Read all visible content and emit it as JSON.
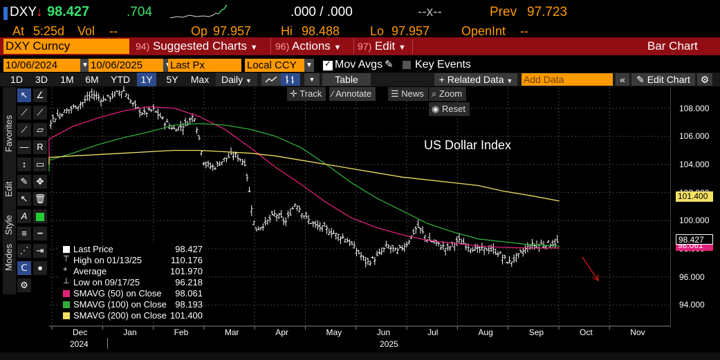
{
  "quote": {
    "ticker": "DXY",
    "direction_arrow": "↓",
    "last_price": "98.427",
    "change": ".704",
    "bid_ask": ".000 / .000",
    "size_placeholder": "--x--",
    "prev_label": "Prev",
    "prev_value": "97.723",
    "at_label": "At",
    "time": "5:25d",
    "vol_label": "Vol",
    "vol_value": "--",
    "open_label": "Op",
    "open_value": "97.957",
    "high_label": "Hi",
    "high_value": "98.488",
    "low_label": "Lo",
    "low_value": "97.957",
    "openint_label": "OpenInt",
    "openint_value": "--"
  },
  "toolbar": {
    "security": "DXY Curncy",
    "suggested_num": "94)",
    "suggested_label": "Suggested Charts",
    "actions_num": "96)",
    "actions_label": "Actions",
    "edit_num": "97)",
    "edit_label": "Edit",
    "view_title": "Bar Chart"
  },
  "settings": {
    "start_date": "10/06/2024",
    "dash": "-",
    "end_date": "10/06/2025",
    "field": "Last Px",
    "currency": "Local CCY",
    "mov_avgs": "Mov Avgs",
    "key_events": "Key Events"
  },
  "periods": {
    "items": [
      "1D",
      "3D",
      "1M",
      "6M",
      "YTD",
      "1Y",
      "5Y",
      "Max"
    ],
    "selected": "1Y",
    "frequency": "Daily",
    "table_label": "Table",
    "related_data": "Related Data",
    "add_data_placeholder": "Add Data",
    "edit_chart": "Edit Chart"
  },
  "overlay": {
    "track": "Track",
    "annotate": "Annotate",
    "news": "News",
    "zoom": "Zoom",
    "reset": "Reset"
  },
  "side_labels": {
    "favorites": "Favorites",
    "edit": "Edit",
    "style": "Style",
    "modes": "Modes"
  },
  "legend": {
    "last_price_label": "Last Price",
    "last_price_value": "98.427",
    "high_label": "High on 01/13/25",
    "high_value": "110.176",
    "average_label": "Average",
    "average_value": "101.970",
    "low_label": "Low on 09/17/25",
    "low_value": "96.218",
    "sma50_label": "SMAVG (50)  on Close",
    "sma50_value": "98.061",
    "sma100_label": "SMAVG (100)  on Close",
    "sma100_value": "98.193",
    "sma200_label": "SMAVG (200)  on Close",
    "sma200_value": "101.400"
  },
  "colors": {
    "accent_orange": "#ff9a00",
    "bar_red": "#900d14",
    "price_bars": "#ffffff",
    "sma50": "#e0217a",
    "sma100": "#2fae3a",
    "sma200": "#f3e063",
    "annotation_arrow": "#e0201a"
  },
  "chart_data": {
    "type": "line",
    "title": "US Dollar Index",
    "xlabel": "",
    "ylabel": "",
    "ylim": [
      92.5,
      109.5
    ],
    "y_ticks": [
      "108.000",
      "106.000",
      "104.000",
      "102.000",
      "100.000",
      "98.000",
      "96.000",
      "94.000"
    ],
    "x_ticks": [
      "Dec",
      "Jan",
      "Feb",
      "Mar",
      "Apr",
      "May",
      "Jun",
      "Jul",
      "Aug",
      "Sep",
      "Oct",
      "Nov"
    ],
    "x_sub_labels": [
      "2024",
      "2025"
    ],
    "axis_badges": {
      "sma200": "101.400",
      "last": "98.427",
      "sma50": "98.061"
    },
    "x_months": [
      0,
      1,
      2,
      3,
      4,
      5,
      6,
      7,
      8,
      9,
      10,
      11
    ],
    "series": [
      {
        "name": "Last Price",
        "x": [
          -1.6,
          -1.4,
          -1.2,
          -1.0,
          -0.8,
          -0.6,
          -0.4,
          -0.2,
          0.0,
          0.2,
          0.4,
          0.6,
          0.8,
          1.0,
          1.2,
          1.4,
          1.6,
          1.8,
          2.0,
          2.2,
          2.4,
          2.6,
          2.8,
          3.0,
          3.2,
          3.4,
          3.6,
          3.8,
          4.0,
          4.2,
          4.4,
          4.6,
          4.8,
          5.0,
          5.2,
          5.4,
          5.6,
          5.8,
          6.0,
          6.2,
          6.4,
          6.6,
          6.8,
          7.0,
          7.2,
          7.4,
          7.6,
          7.8,
          8.0,
          8.2,
          8.4,
          8.6,
          8.8,
          9.0,
          9.2,
          9.4,
          9.6
        ],
        "values": [
          105.0,
          104.2,
          103.8,
          104.5,
          105.3,
          106.5,
          107.2,
          107.7,
          108.0,
          108.4,
          109.0,
          108.6,
          108.9,
          109.3,
          108.2,
          107.6,
          107.9,
          107.1,
          106.5,
          106.8,
          107.5,
          104.0,
          103.8,
          104.4,
          104.7,
          104.1,
          99.3,
          99.8,
          100.5,
          99.9,
          101.3,
          100.2,
          99.6,
          99.4,
          99.0,
          98.7,
          97.9,
          97.0,
          97.4,
          98.2,
          97.8,
          98.4,
          99.6,
          98.7,
          98.3,
          98.0,
          98.6,
          98.2,
          97.9,
          98.0,
          97.7,
          97.0,
          97.5,
          98.2,
          98.3,
          98.4,
          98.43
        ]
      },
      {
        "name": "SMAVG (50)  on Close",
        "x": [
          -1.6,
          -1.0,
          -0.5,
          0.0,
          0.5,
          1.0,
          1.5,
          2.0,
          2.5,
          3.0,
          3.5,
          4.0,
          4.5,
          5.0,
          5.5,
          6.0,
          6.5,
          7.0,
          7.5,
          8.0,
          8.5,
          9.0,
          9.6
        ],
        "values": [
          103.8,
          104.8,
          105.8,
          106.7,
          107.3,
          107.8,
          108.1,
          108.0,
          107.4,
          106.5,
          105.2,
          103.8,
          102.6,
          101.3,
          100.2,
          99.5,
          99.0,
          98.6,
          98.4,
          98.2,
          98.1,
          98.05,
          98.06
        ]
      },
      {
        "name": "SMAVG (100)  on Close",
        "x": [
          -1.6,
          -1.0,
          -0.5,
          0.0,
          0.5,
          1.0,
          1.5,
          2.0,
          2.5,
          3.0,
          3.5,
          4.0,
          4.5,
          5.0,
          5.5,
          6.0,
          6.5,
          7.0,
          7.5,
          8.0,
          8.5,
          9.0,
          9.6
        ],
        "values": [
          103.5,
          103.8,
          104.3,
          104.8,
          105.4,
          105.9,
          106.3,
          106.8,
          106.9,
          106.8,
          106.5,
          106.0,
          105.2,
          104.0,
          102.7,
          101.6,
          100.7,
          99.8,
          99.2,
          98.7,
          98.5,
          98.3,
          98.19
        ]
      },
      {
        "name": "SMAVG (200)  on Close",
        "x": [
          -1.6,
          -1.0,
          -0.5,
          0.0,
          0.5,
          1.0,
          1.5,
          2.0,
          2.5,
          3.0,
          3.5,
          4.0,
          4.5,
          5.0,
          5.5,
          6.0,
          6.5,
          7.0,
          7.5,
          8.0,
          8.5,
          9.0,
          9.6
        ],
        "values": [
          104.0,
          104.3,
          104.5,
          104.6,
          104.7,
          104.8,
          104.9,
          105.0,
          105.0,
          104.9,
          104.8,
          104.6,
          104.3,
          104.0,
          103.7,
          103.4,
          103.1,
          102.9,
          102.7,
          102.5,
          102.1,
          101.8,
          101.4
        ]
      }
    ]
  }
}
